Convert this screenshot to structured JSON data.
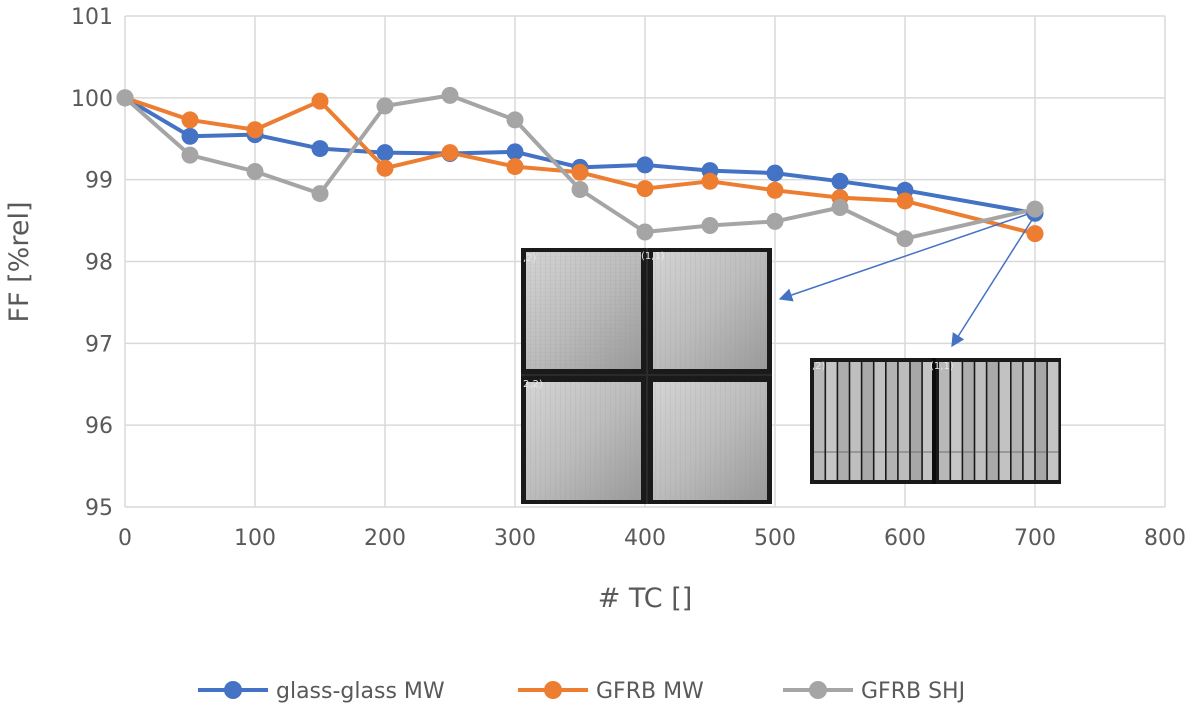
{
  "chart_data": {
    "type": "line",
    "xlabel": "# TC []",
    "ylabel": "FF [%rel]",
    "xlim": [
      0,
      800
    ],
    "ylim": [
      95,
      101
    ],
    "x_ticks": [
      0,
      100,
      200,
      300,
      400,
      500,
      600,
      700,
      800
    ],
    "y_ticks": [
      95,
      96,
      97,
      98,
      99,
      100,
      101
    ],
    "grid": true,
    "legend_position": "bottom",
    "x": [
      0,
      50,
      100,
      150,
      200,
      250,
      300,
      350,
      400,
      450,
      500,
      550,
      600,
      700
    ],
    "series": [
      {
        "name": "glass-glass MW",
        "color": "#4472C4",
        "values": [
          100,
          99.53,
          99.55,
          99.38,
          99.33,
          99.32,
          99.34,
          99.15,
          99.18,
          99.11,
          99.08,
          98.98,
          98.87,
          98.59
        ]
      },
      {
        "name": "GFRB MW",
        "color": "#ED7D31",
        "values": [
          100,
          99.73,
          99.61,
          99.96,
          99.14,
          99.33,
          99.16,
          99.09,
          98.89,
          98.98,
          98.87,
          98.78,
          98.74,
          98.34
        ]
      },
      {
        "name": "GFRB SHJ",
        "color": "#A5A5A5",
        "values": [
          100,
          99.3,
          99.1,
          98.83,
          99.9,
          100.03,
          99.73,
          98.88,
          98.36,
          98.44,
          98.49,
          98.66,
          98.28,
          98.64
        ]
      }
    ],
    "insets": [
      {
        "name": "el-image-module-400",
        "label_left": ",2)",
        "label_right": "(1,1)",
        "label_bottom": "2,2)",
        "arrow_target_x": 700,
        "arrow_target_y": 98.59
      },
      {
        "name": "el-image-module-700",
        "label_left": ",2)",
        "label_right": "(1,1)",
        "arrow_target_x": 700,
        "arrow_target_y": 98.59
      }
    ]
  }
}
